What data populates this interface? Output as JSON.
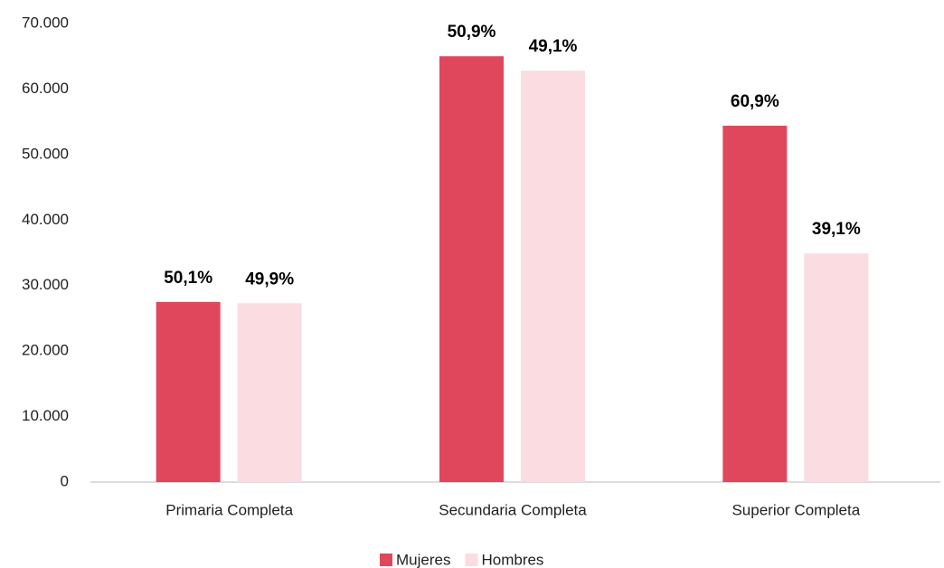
{
  "chart_data": {
    "type": "bar",
    "categories": [
      "Primaria Completa",
      "Secundaria Completa",
      "Superior Completa"
    ],
    "series": [
      {
        "name": "Mujeres",
        "color": "#e0475c",
        "values": [
          27500,
          65000,
          54400
        ],
        "data_labels": [
          "50,1%",
          "50,9%",
          "60,9%"
        ]
      },
      {
        "name": "Hombres",
        "color": "#fadce1",
        "values": [
          27300,
          62800,
          34900
        ],
        "data_labels": [
          "49,9%",
          "49,1%",
          "39,1%"
        ]
      }
    ],
    "ylim": [
      0,
      70000
    ],
    "yticks": [
      0,
      {
        "value": 10000,
        "label": "10.000"
      },
      {
        "value": 20000,
        "label": "20.000"
      },
      {
        "value": 30000,
        "label": "30.000"
      },
      {
        "value": 40000,
        "label": "40.000"
      },
      {
        "value": 50000,
        "label": "50.000"
      },
      {
        "value": 60000,
        "label": "60.000"
      },
      {
        "value": 70000,
        "label": "70.000"
      }
    ],
    "grid": false,
    "legend": "bottom"
  }
}
